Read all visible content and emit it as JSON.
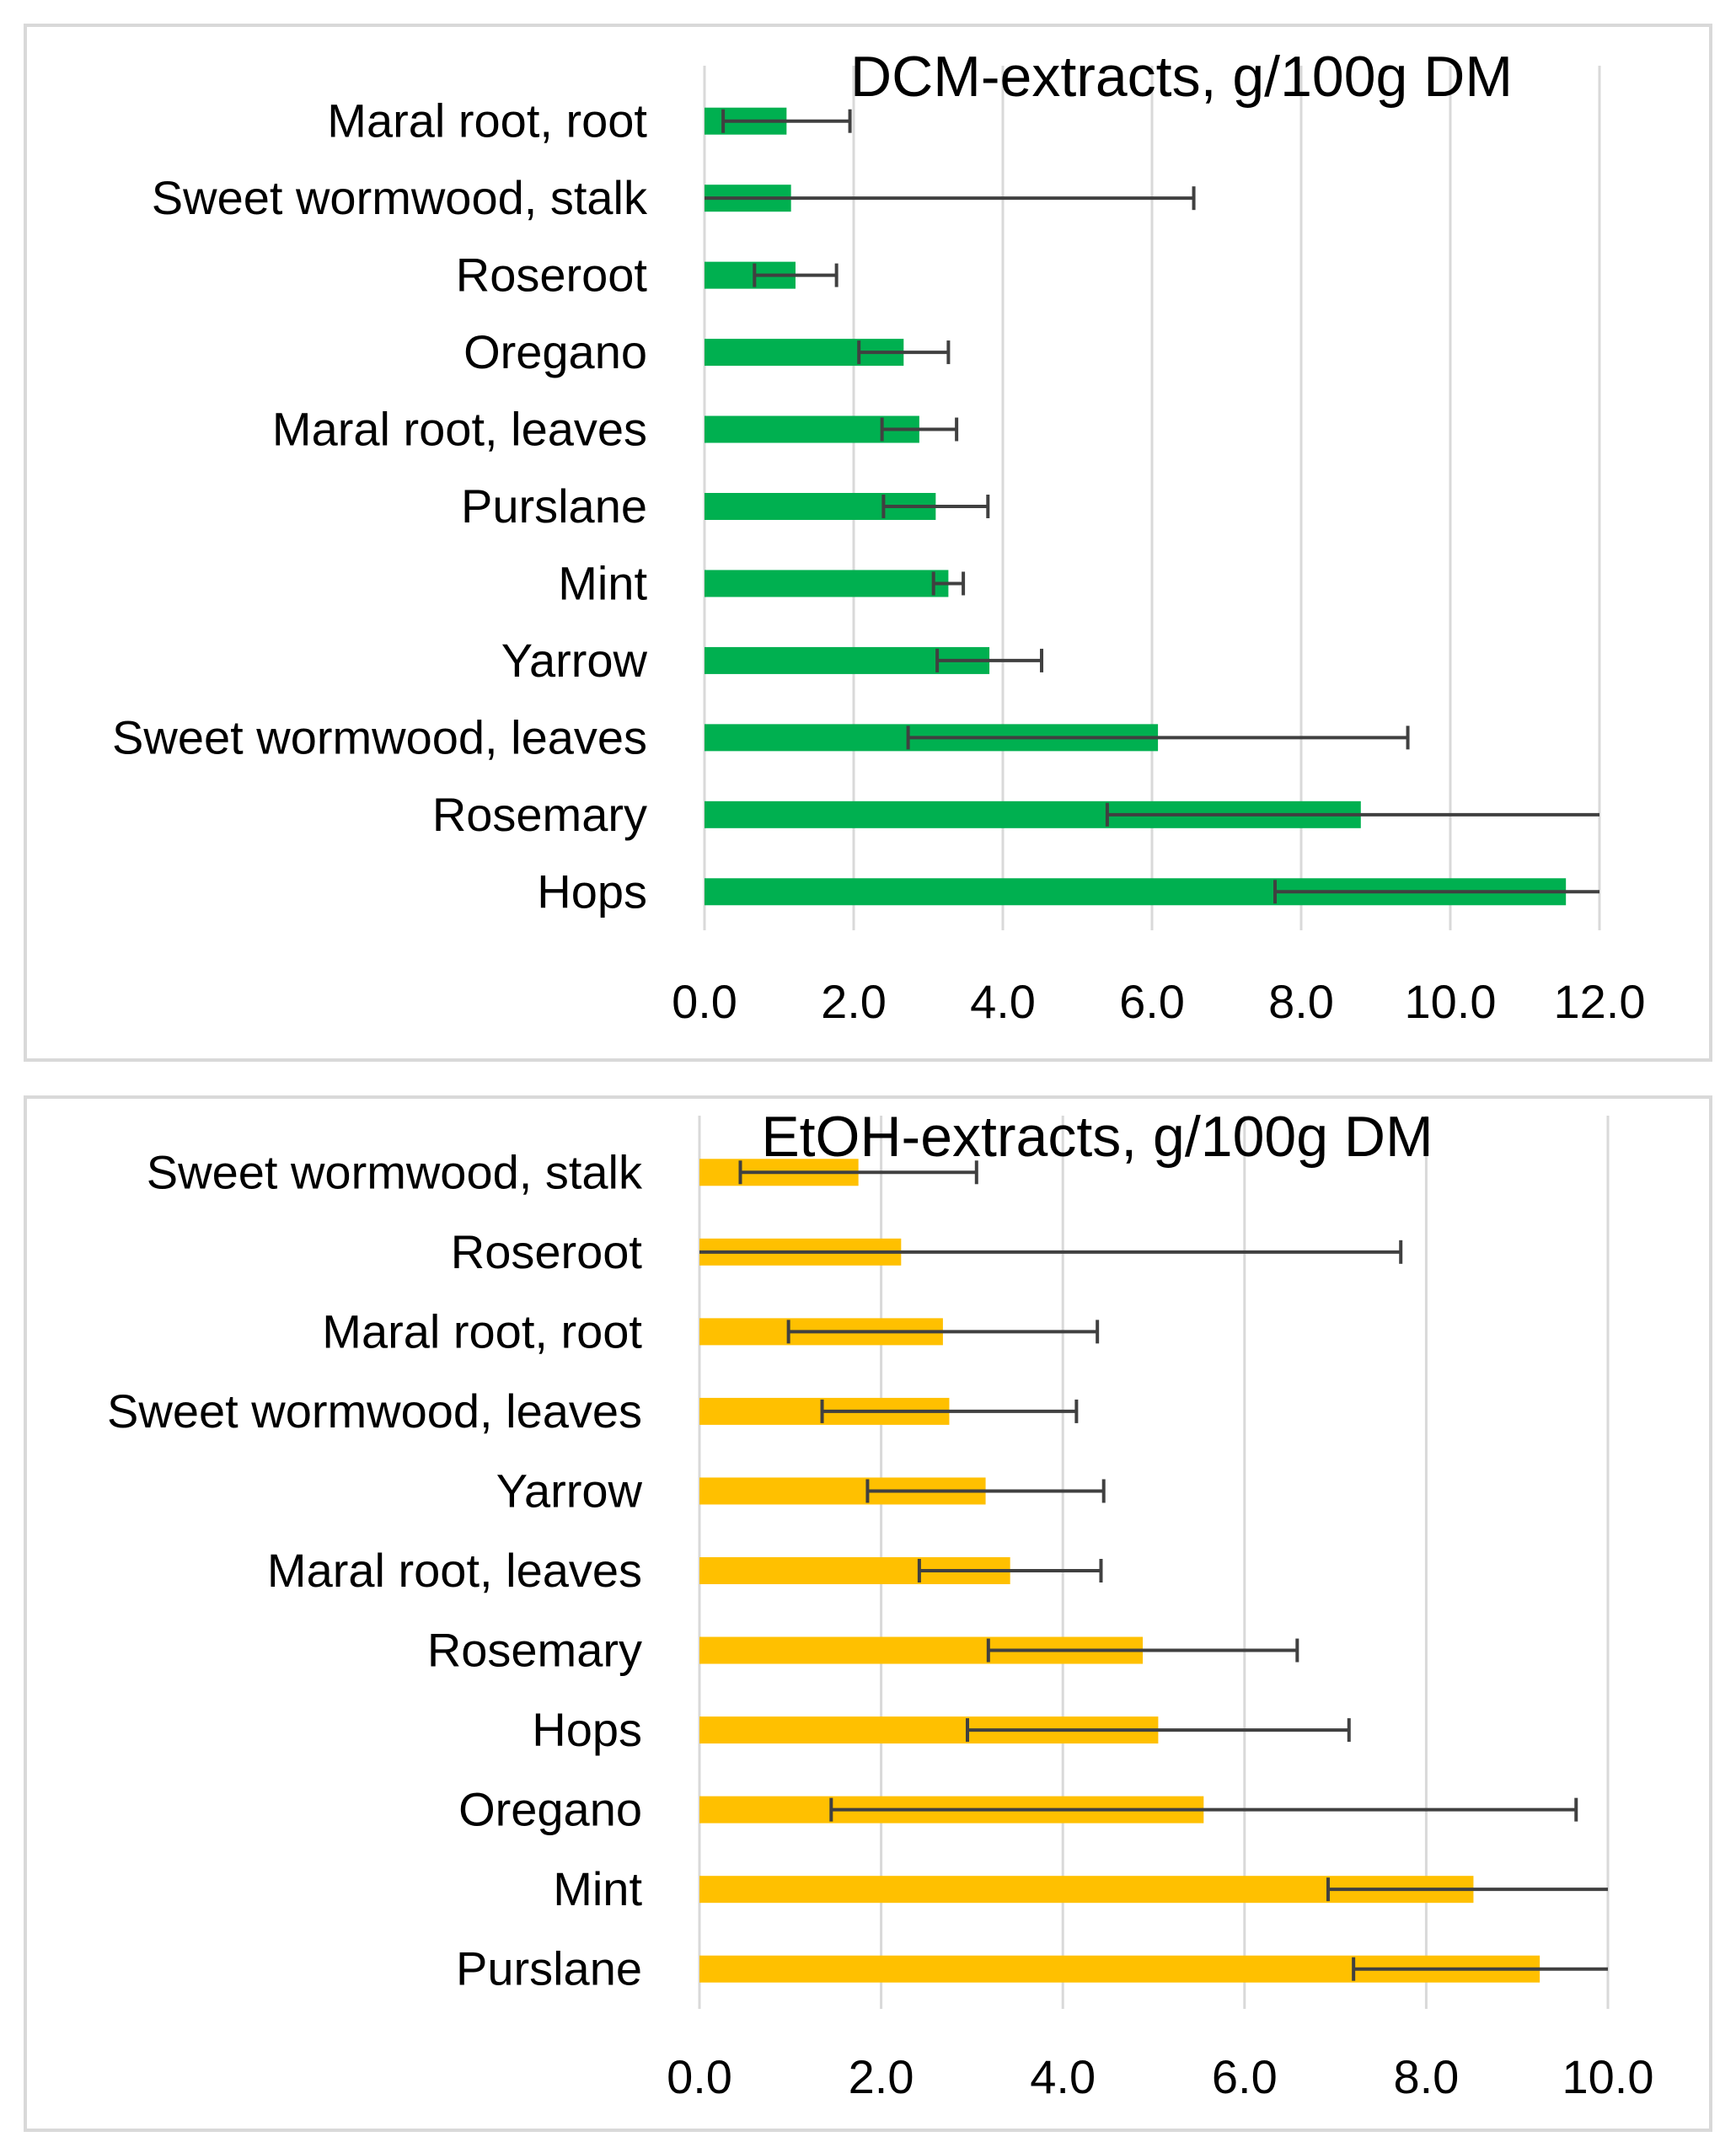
{
  "chart_data": [
    {
      "type": "bar",
      "orientation": "horizontal",
      "title": "DCM-extracts, g/100g DM",
      "color": "#00b050",
      "categories": [
        "Hops",
        "Rosemary",
        "Sweet wormwood, leaves",
        "Yarrow",
        "Mint",
        "Purslane",
        "Maral root, leaves",
        "Oregano",
        "Roseroot",
        "Sweet wormwood, stalk",
        "Maral root, root"
      ],
      "values": [
        11.55,
        8.8,
        6.08,
        3.82,
        3.27,
        3.1,
        2.88,
        2.67,
        1.22,
        1.16,
        1.1
      ],
      "error": [
        3.9,
        3.4,
        3.35,
        0.7,
        0.2,
        0.7,
        0.5,
        0.6,
        0.55,
        5.4,
        0.85
      ],
      "xlim": [
        0,
        12
      ],
      "ticks": [
        "0.0",
        "2.0",
        "4.0",
        "6.0",
        "8.0",
        "10.0",
        "12.0"
      ],
      "tick_values": [
        0,
        2,
        4,
        6,
        8,
        10,
        12
      ]
    },
    {
      "type": "bar",
      "orientation": "horizontal",
      "title": "EtOH-extracts, g/100g DM",
      "color": "#ffc000",
      "categories": [
        "Purslane",
        "Mint",
        "Oregano",
        "Hops",
        "Rosemary",
        "Maral root, leaves",
        "Yarrow",
        "Sweet wormwood, leaves",
        "Maral root, root",
        "Roseroot",
        "Sweet wormwood, stalk"
      ],
      "values": [
        9.25,
        8.52,
        5.55,
        5.05,
        4.88,
        3.42,
        3.15,
        2.75,
        2.68,
        2.22,
        1.75
      ],
      "error": [
        2.05,
        1.6,
        4.1,
        2.1,
        1.7,
        1.0,
        1.3,
        1.4,
        1.7,
        5.5,
        1.3
      ],
      "xlim": [
        0,
        10
      ],
      "ticks": [
        "0.0",
        "2.0",
        "4.0",
        "6.0",
        "8.0",
        "10.0"
      ],
      "tick_values": [
        0,
        2,
        4,
        6,
        8,
        10
      ]
    }
  ]
}
